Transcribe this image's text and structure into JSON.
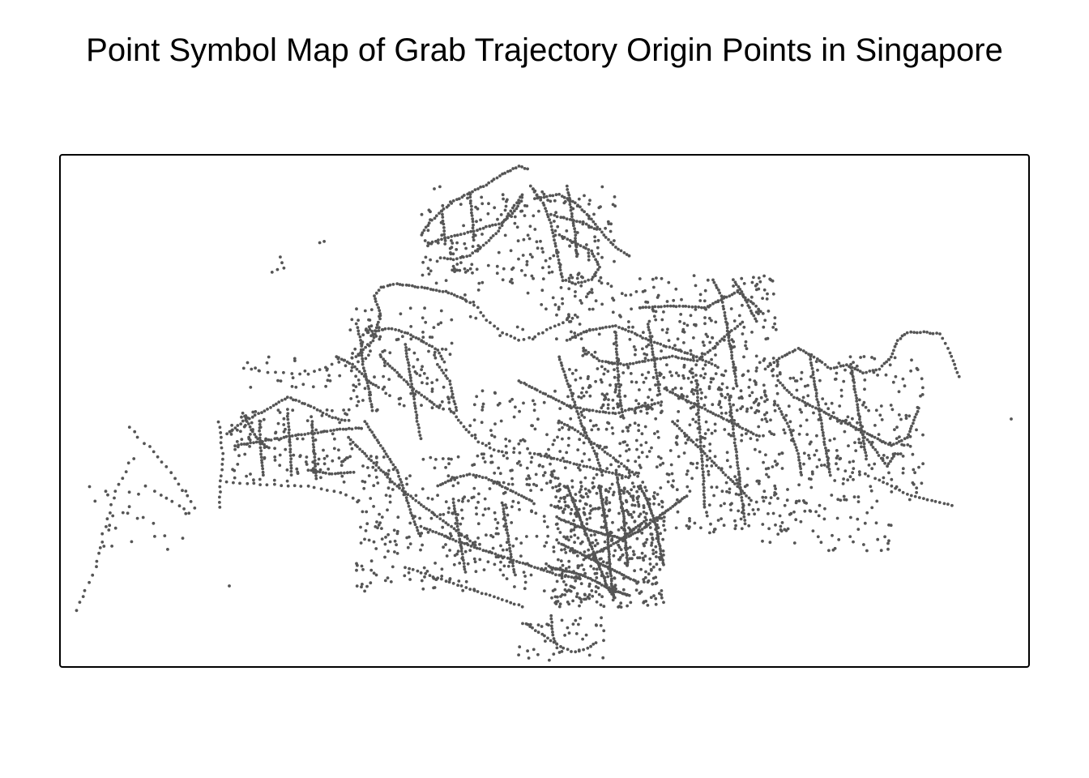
{
  "title": "Point Symbol Map of Grab Trajectory Origin Points in Singapore",
  "colors": {
    "point": "#555555",
    "frame": "#000000",
    "background": "#ffffff"
  },
  "map": {
    "symbol": "point",
    "legend": "none",
    "grid": false,
    "axes": false
  }
}
